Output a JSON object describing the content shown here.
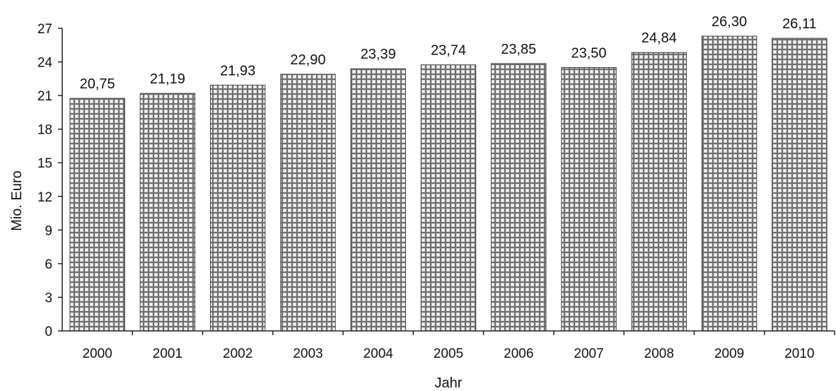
{
  "chart_data": {
    "type": "bar",
    "categories": [
      "2000",
      "2001",
      "2002",
      "2003",
      "2004",
      "2005",
      "2006",
      "2007",
      "2008",
      "2009",
      "2010"
    ],
    "values": [
      20.75,
      21.19,
      21.93,
      22.9,
      23.39,
      23.74,
      23.85,
      23.5,
      24.84,
      26.3,
      26.11
    ],
    "value_labels": [
      "20,75",
      "21,19",
      "21,93",
      "22,90",
      "23,39",
      "23,74",
      "23,85",
      "23,50",
      "24,84",
      "26,30",
      "26,11"
    ],
    "xlabel": "Jahr",
    "ylabel": "Mio. Euro",
    "ylim": [
      0,
      27
    ],
    "yticks": [
      "0",
      "3",
      "6",
      "9",
      "12",
      "15",
      "18",
      "21",
      "24",
      "27"
    ],
    "grid": false,
    "bar_fill": "crosshatch grid pattern",
    "colors": {
      "bar_base": "#7a7a7a",
      "bar_grid": "#e8e8e8",
      "axis": "#222222"
    }
  }
}
